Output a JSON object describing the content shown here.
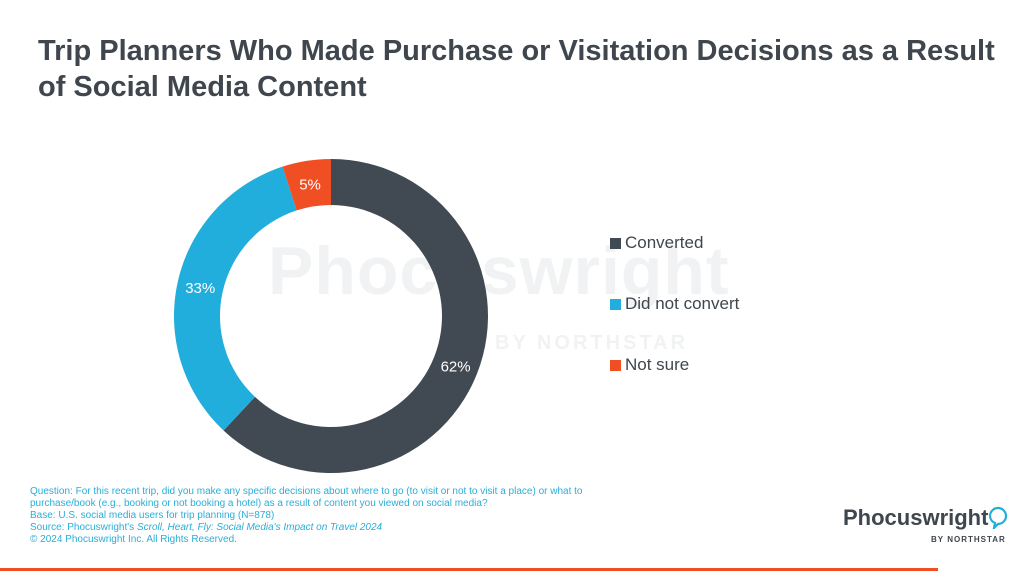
{
  "title": "Trip Planners Who Made Purchase or Visitation Decisions as a Result of Social Media Content",
  "chart_data": {
    "type": "pie",
    "donut": true,
    "title": "Trip Planners Who Made Purchase or Visitation Decisions as a Result of Social Media Content",
    "series": [
      {
        "name": "Converted",
        "value": 62,
        "label": "62%",
        "color": "#414a52"
      },
      {
        "name": "Did not convert",
        "value": 33,
        "label": "33%",
        "color": "#22aedc"
      },
      {
        "name": "Not sure",
        "value": 5,
        "label": "5%",
        "color": "#f04e23"
      }
    ],
    "legend": "right"
  },
  "watermark": {
    "main": "Phocuswright",
    "by": "BY NORTHSTAR"
  },
  "footnotes": {
    "question_1": "Question: For this recent trip, did you make any specific decisions about where to go (to visit or not to visit a place) or what to",
    "question_2": "purchase/book (e.g., booking or not booking a hotel) as a result of content you viewed on social media?",
    "base": "Base: U.S. social media users for trip planning (N=878)",
    "source_prefix": "Source: Phocuswright's ",
    "source_title": "Scroll, Heart, Fly: Social Media's Impact on Travel 2024",
    "copyright": "© 2024 Phocuswright Inc. All Rights Reserved."
  },
  "logo": {
    "name": "Phocuswright",
    "by": "BY NORTHSTAR"
  },
  "colors": {
    "accent": "#f04e23",
    "text": "#3f464d",
    "footnote": "#2aaed8"
  }
}
